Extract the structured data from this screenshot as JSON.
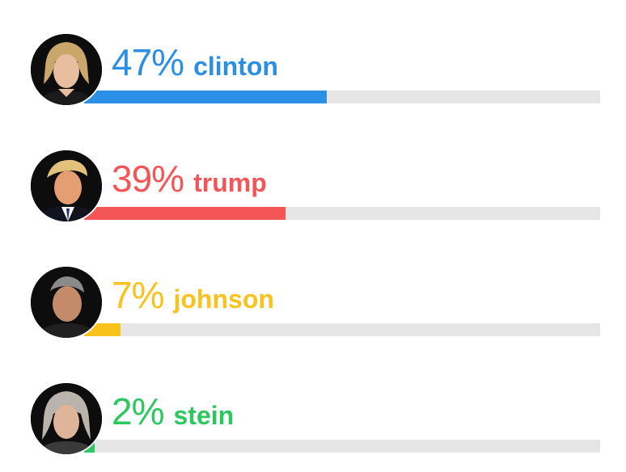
{
  "chart_data": {
    "type": "bar",
    "orientation": "horizontal",
    "xlim": [
      0,
      100
    ],
    "categories": [
      "clinton",
      "trump",
      "johnson",
      "stein"
    ],
    "values": [
      47,
      39,
      7,
      2
    ],
    "value_labels": [
      "47%",
      "39%",
      "7%",
      "2%"
    ],
    "colors": [
      "#2b8fe6",
      "#f45657",
      "#f9c21c",
      "#2cc85f"
    ],
    "track_color": "#e6e6e6",
    "title": "",
    "xlabel": "",
    "ylabel": "",
    "grid": false,
    "legend": "none"
  },
  "candidates": [
    {
      "name": "clinton",
      "pct_label": "47%",
      "value": 47,
      "color": "#2b8fe6",
      "avatar_icon": "clinton-portrait-icon"
    },
    {
      "name": "trump",
      "pct_label": "39%",
      "value": 39,
      "color": "#f45657",
      "avatar_icon": "trump-portrait-icon"
    },
    {
      "name": "johnson",
      "pct_label": "7%",
      "value": 7,
      "color": "#f9c21c",
      "avatar_icon": "johnson-portrait-icon"
    },
    {
      "name": "stein",
      "pct_label": "2%",
      "value": 2,
      "color": "#2cc85f",
      "avatar_icon": "stein-portrait-icon"
    }
  ]
}
